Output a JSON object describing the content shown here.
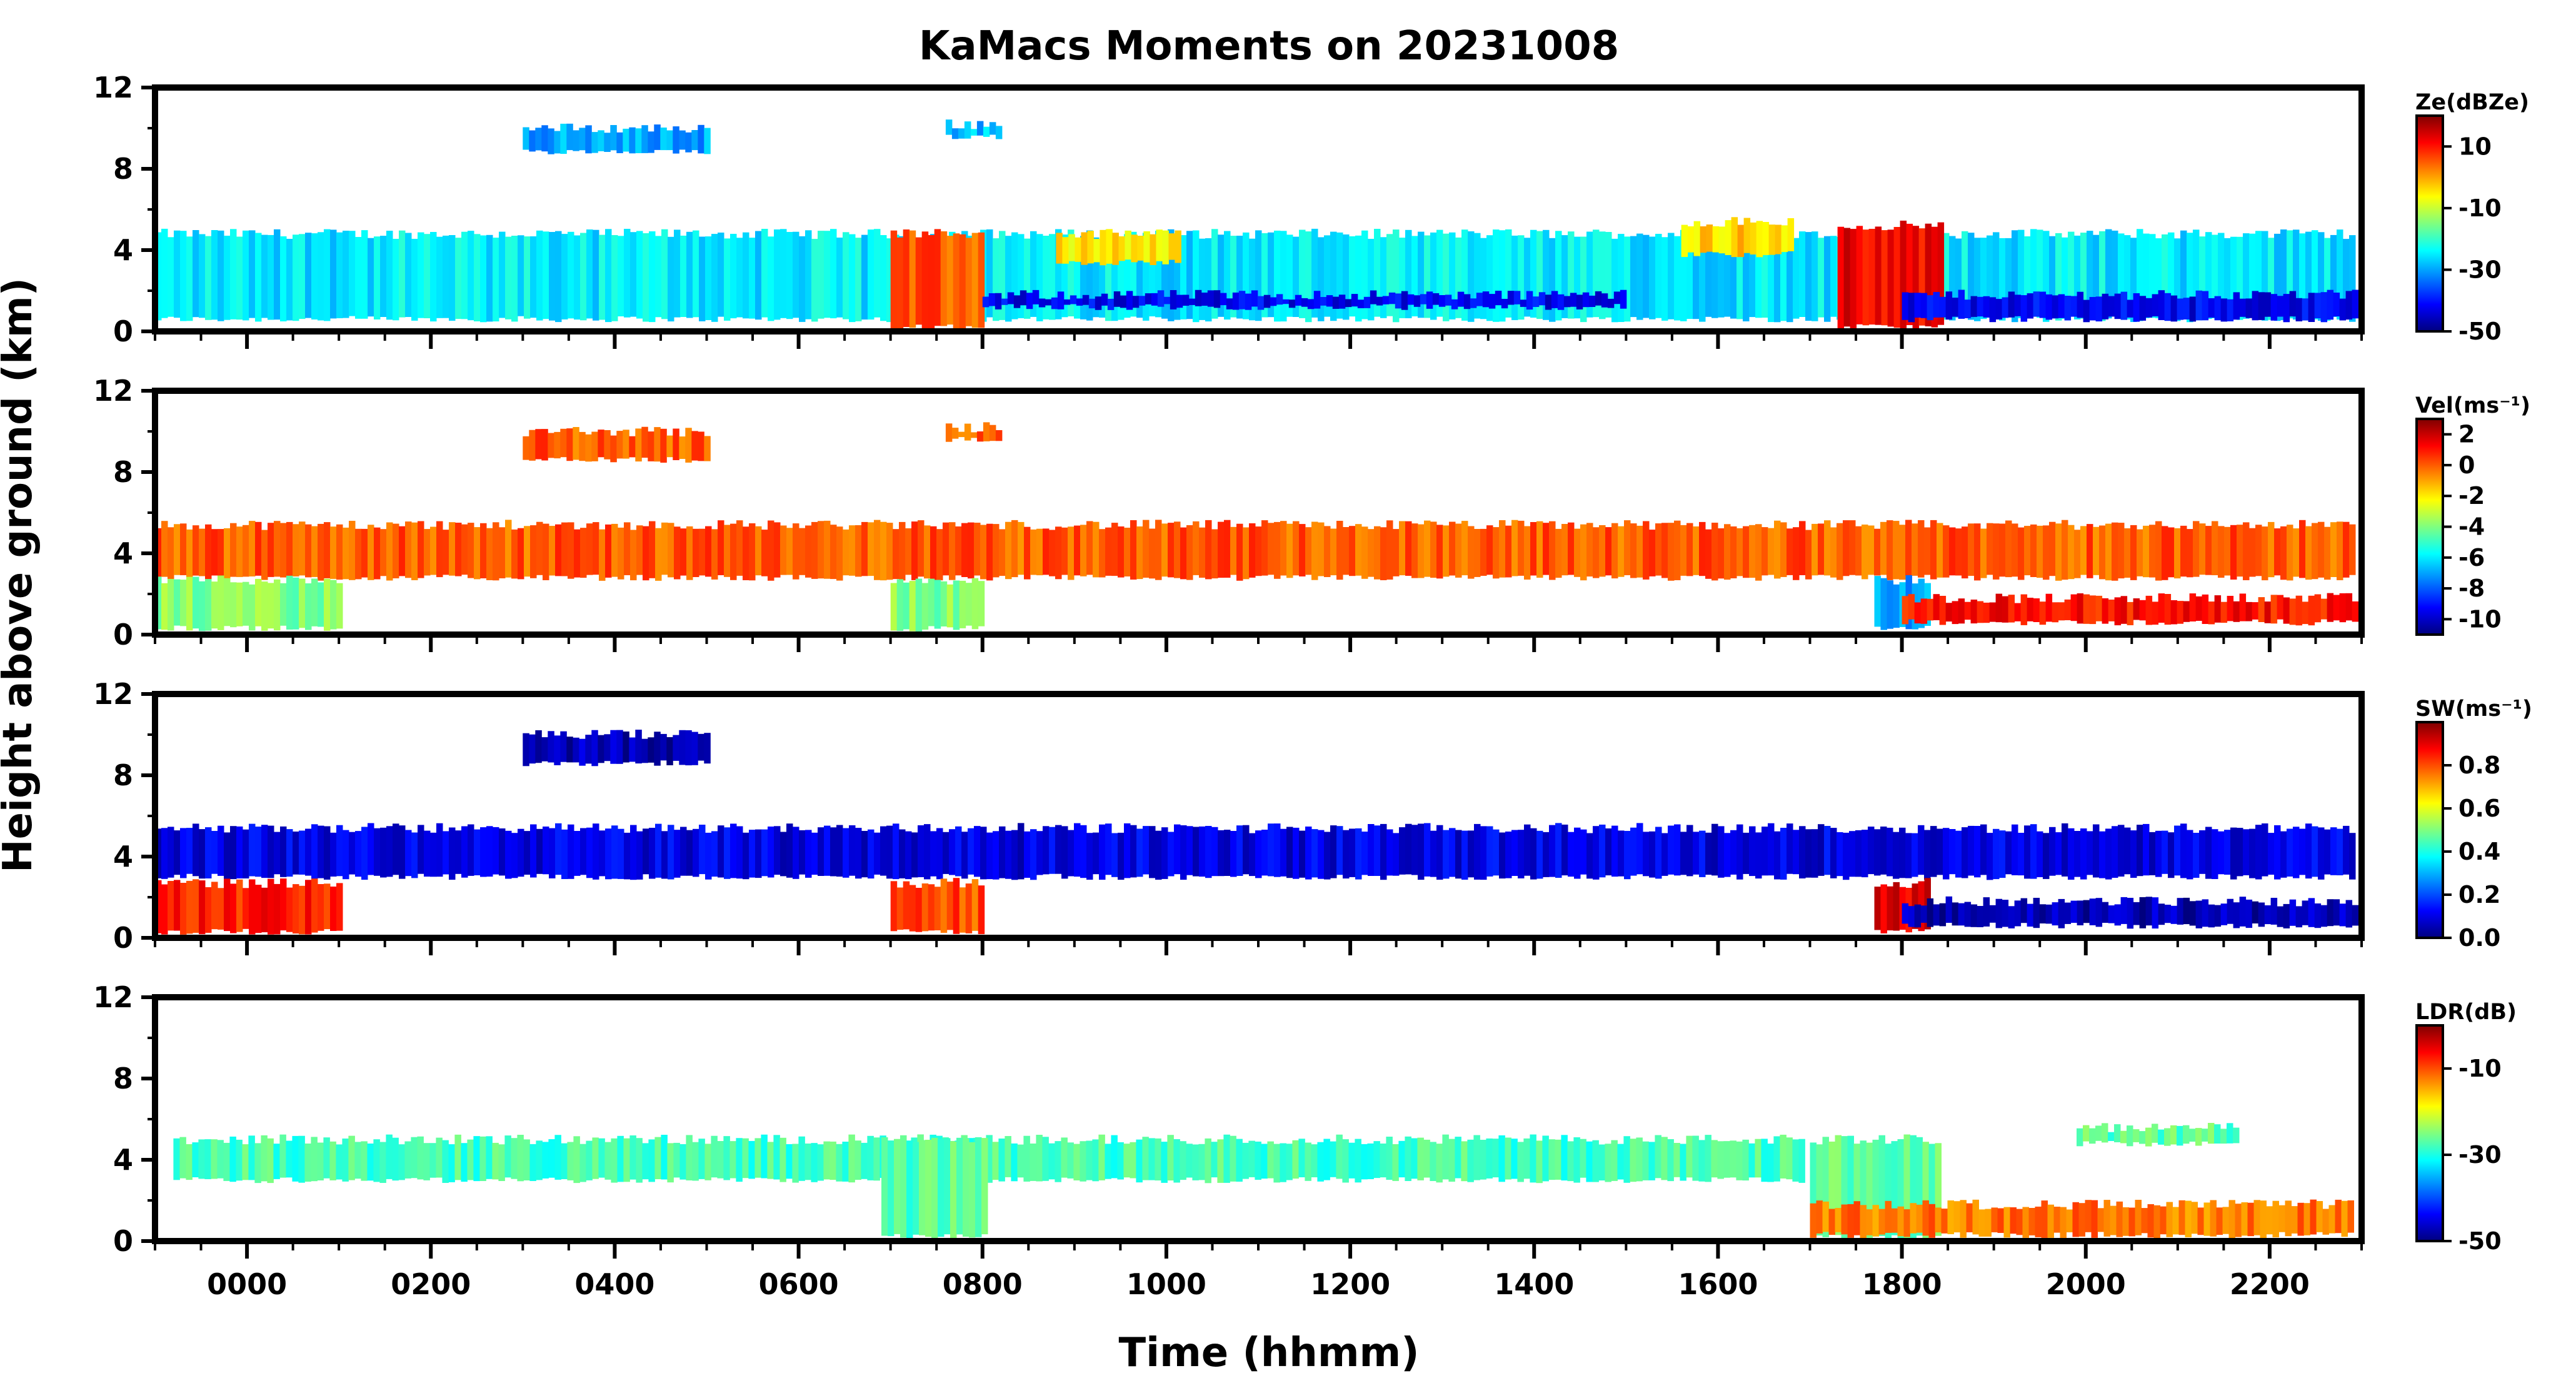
{
  "chart_data": {
    "type": "heatmap",
    "title": "KaMacs Moments on 20231008",
    "xlabel": "Time (hhmm)",
    "ylabel": "Height above ground (km)",
    "xlim": [
      -100,
      2300
    ],
    "x_ticks": [
      0,
      200,
      400,
      600,
      800,
      1000,
      1200,
      1400,
      1600,
      1800,
      2000,
      2200
    ],
    "x_tick_labels": [
      "0000",
      "0200",
      "0400",
      "0600",
      "0800",
      "1000",
      "1200",
      "1400",
      "1600",
      "1800",
      "2000",
      "2200"
    ],
    "panels": [
      {
        "name": "Ze",
        "colorbar_label": "Ze(dBZe)",
        "colorbar_range": [
          -50,
          20
        ],
        "colorbar_ticks": [
          -50,
          -30,
          -10,
          10
        ],
        "colorbar_tick_labels": [
          "-50",
          "-30",
          "-10",
          "10"
        ],
        "y_range": [
          0,
          12
        ],
        "y_ticks": [
          0,
          4,
          8,
          12
        ],
        "y_tick_labels": [
          "0",
          "4",
          "8",
          "12"
        ]
      },
      {
        "name": "Vel",
        "colorbar_label": "Vel(ms⁻¹)",
        "colorbar_range": [
          -11,
          3
        ],
        "colorbar_ticks": [
          -10,
          -8,
          -6,
          -4,
          -2,
          0,
          2
        ],
        "colorbar_tick_labels": [
          "-10",
          "-8",
          "-6",
          "-4",
          "-2",
          "0",
          "2"
        ],
        "y_range": [
          0,
          12
        ],
        "y_ticks": [
          0,
          4,
          8,
          12
        ],
        "y_tick_labels": [
          "0",
          "4",
          "8",
          "12"
        ]
      },
      {
        "name": "SW",
        "colorbar_label": "SW(ms⁻¹)",
        "colorbar_range": [
          0,
          1.0
        ],
        "colorbar_ticks": [
          0.0,
          0.2,
          0.4,
          0.6,
          0.8
        ],
        "colorbar_tick_labels": [
          "0.0",
          "0.2",
          "0.4",
          "0.6",
          "0.8"
        ],
        "y_range": [
          0,
          12
        ],
        "y_ticks": [
          0,
          4,
          8,
          12
        ],
        "y_tick_labels": [
          "0",
          "4",
          "8",
          "12"
        ]
      },
      {
        "name": "LDR",
        "colorbar_label": "LDR(dB)",
        "colorbar_range": [
          -50,
          0
        ],
        "colorbar_ticks": [
          -50,
          -30,
          -10
        ],
        "colorbar_tick_labels": [
          "-50",
          "-30",
          "-10"
        ],
        "y_range": [
          0,
          12
        ],
        "y_ticks": [
          0,
          4,
          8,
          12
        ],
        "y_tick_labels": [
          "0",
          "4",
          "8",
          "12"
        ]
      }
    ],
    "colormap": "jet",
    "colormap_stops": [
      "#00007f",
      "#0000ff",
      "#007fff",
      "#00ffff",
      "#7fff7f",
      "#ffff00",
      "#ff7f00",
      "#ff0000",
      "#7f0000"
    ],
    "features": {
      "Ze": [
        {
          "kind": "cloud_layer",
          "t0": -100,
          "t1": 2290,
          "base_km": 0.6,
          "top_km": 4.8,
          "value": -25
        },
        {
          "kind": "cloud_layer",
          "t0": 300,
          "t1": 500,
          "base_km": 8.8,
          "top_km": 10.0,
          "value": -30
        },
        {
          "kind": "cloud_layer",
          "t0": 760,
          "t1": 820,
          "base_km": 9.6,
          "top_km": 10.2,
          "value": -28
        },
        {
          "kind": "cloud_layer",
          "t0": 880,
          "t1": 1010,
          "base_km": 3.4,
          "top_km": 4.8,
          "value": -5
        },
        {
          "kind": "cloud_layer",
          "t0": 1560,
          "t1": 1680,
          "base_km": 3.8,
          "top_km": 5.4,
          "value": -3
        },
        {
          "kind": "precip_column",
          "t0": 700,
          "t1": 800,
          "base_km": 0.2,
          "top_km": 4.8,
          "value": 5
        },
        {
          "kind": "precip_column",
          "t0": 1730,
          "t1": 1840,
          "base_km": 0.2,
          "top_km": 5.2,
          "value": 12
        },
        {
          "kind": "low_layer",
          "t0": 1800,
          "t1": 2290,
          "base_km": 0.6,
          "top_km": 1.8,
          "value": -42
        },
        {
          "kind": "low_layer",
          "t0": 800,
          "t1": 1500,
          "base_km": 1.2,
          "top_km": 1.8,
          "value": -42
        }
      ],
      "Vel": [
        {
          "kind": "cloud_layer",
          "t0": -100,
          "t1": 2290,
          "base_km": 2.8,
          "top_km": 5.4,
          "value": 0
        },
        {
          "kind": "cloud_layer",
          "t0": 300,
          "t1": 500,
          "base_km": 8.6,
          "top_km": 10.0,
          "value": 0
        },
        {
          "kind": "cloud_layer",
          "t0": 760,
          "t1": 820,
          "base_km": 9.6,
          "top_km": 10.2,
          "value": 0
        },
        {
          "kind": "precip_column",
          "t0": -100,
          "t1": 100,
          "base_km": 0.3,
          "top_km": 2.7,
          "value": -4
        },
        {
          "kind": "precip_column",
          "t0": 700,
          "t1": 800,
          "base_km": 0.3,
          "top_km": 2.7,
          "value": -4
        },
        {
          "kind": "precip_column",
          "t0": 1770,
          "t1": 1830,
          "base_km": 0.3,
          "top_km": 2.7,
          "value": -7
        },
        {
          "kind": "low_layer",
          "t0": 1800,
          "t1": 2290,
          "base_km": 0.6,
          "top_km": 1.8,
          "value": 1
        }
      ],
      "SW": [
        {
          "kind": "cloud_layer",
          "t0": -100,
          "t1": 2290,
          "base_km": 3.0,
          "top_km": 5.4,
          "value": 0.1
        },
        {
          "kind": "cloud_layer",
          "t0": 300,
          "t1": 500,
          "base_km": 8.6,
          "top_km": 10.0,
          "value": 0.05
        },
        {
          "kind": "precip_column",
          "t0": -100,
          "t1": 100,
          "base_km": 0.3,
          "top_km": 2.7,
          "value": 0.85
        },
        {
          "kind": "precip_column",
          "t0": 700,
          "t1": 800,
          "base_km": 0.3,
          "top_km": 2.7,
          "value": 0.8
        },
        {
          "kind": "precip_column",
          "t0": 1770,
          "t1": 1830,
          "base_km": 0.3,
          "top_km": 2.7,
          "value": 0.9
        },
        {
          "kind": "low_layer",
          "t0": 1800,
          "t1": 2290,
          "base_km": 0.6,
          "top_km": 1.8,
          "value": 0.05
        }
      ],
      "LDR": [
        {
          "kind": "cloud_layer",
          "t0": -80,
          "t1": 1690,
          "base_km": 3.0,
          "top_km": 5.0,
          "value": -28
        },
        {
          "kind": "precip_column",
          "t0": 690,
          "t1": 800,
          "base_km": 0.2,
          "top_km": 5.0,
          "value": -27
        },
        {
          "kind": "precip_column",
          "t0": 1700,
          "t1": 1840,
          "base_km": 0.2,
          "top_km": 5.0,
          "value": -27
        },
        {
          "kind": "low_layer",
          "t0": 1700,
          "t1": 2290,
          "base_km": 0.3,
          "top_km": 1.8,
          "value": -12
        },
        {
          "kind": "cloud_layer",
          "t0": 1990,
          "t1": 2160,
          "base_km": 4.8,
          "top_km": 5.6,
          "value": -27
        }
      ]
    }
  }
}
